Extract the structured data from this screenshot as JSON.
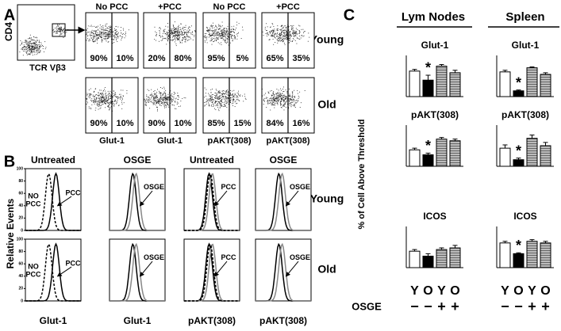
{
  "panel_a": {
    "label": "A",
    "gate_plot": {
      "y_label": "CD4",
      "x_label": "TCR Vβ3"
    },
    "columns": [
      "No PCC",
      "+PCC",
      "No PCC",
      "+PCC"
    ],
    "rows": [
      {
        "name": "Young",
        "quadrants": [
          [
            "90%",
            "10%"
          ],
          [
            "20%",
            "80%"
          ],
          [
            "95%",
            "5%"
          ],
          [
            "65%",
            "35%"
          ]
        ]
      },
      {
        "name": "Old",
        "quadrants": [
          [
            "90%",
            "10%"
          ],
          [
            "90%",
            "10%"
          ],
          [
            "85%",
            "15%"
          ],
          [
            "84%",
            "16%"
          ]
        ]
      }
    ],
    "x_labels": [
      "Glut-1",
      "Glut-1",
      "pAKT(308)",
      "pAKT(308)"
    ]
  },
  "panel_b": {
    "label": "B",
    "y_label": "Relative Events",
    "columns": [
      "Untreated",
      "OSGE",
      "Untreated",
      "OSGE"
    ],
    "rows": [
      {
        "name": "Young",
        "annotations": [
          [
            "NO",
            "PCC",
            "PCC"
          ],
          [
            "OSGE"
          ],
          [
            "PCC"
          ],
          [
            "OSGE"
          ]
        ]
      },
      {
        "name": "Old",
        "annotations": [
          [
            "NO",
            "PCC",
            "PCC"
          ],
          [
            "OSGE"
          ],
          [
            "PCC"
          ],
          [
            "OSGE"
          ]
        ]
      }
    ],
    "x_labels": [
      "Glut-1",
      "Glut-1",
      "pAKT(308)",
      "pAKT(308)"
    ],
    "yticks": [
      0,
      20,
      40,
      60,
      80,
      100
    ]
  },
  "panel_c": {
    "label": "C",
    "groups": [
      "Lym Nodes",
      "Spleen"
    ],
    "y_label": "% of Cell Above  Threshold",
    "x_categories": [
      "Y",
      "O",
      "Y",
      "O"
    ],
    "treatment_label": "OSGE",
    "treatment_signs": [
      "−",
      "−",
      "+",
      "+"
    ]
  },
  "chart_data": [
    {
      "type": "bar",
      "group": "Lym Nodes",
      "title": "Glut-1",
      "values": [
        31,
        20,
        37,
        29
      ],
      "errors": [
        2,
        6,
        2,
        3
      ],
      "colors": [
        "#ffffff",
        "#000000",
        "#a8a8a8",
        "#a8a8a8"
      ],
      "annotation": "*",
      "ylim": [
        0,
        50
      ]
    },
    {
      "type": "bar",
      "group": "Spleen",
      "title": "Glut-1",
      "values": [
        30,
        7,
        35,
        27
      ],
      "errors": [
        2,
        1,
        1,
        2
      ],
      "colors": [
        "#ffffff",
        "#000000",
        "#a8a8a8",
        "#a8a8a8"
      ],
      "annotation": "*",
      "ylim": [
        0,
        50
      ]
    },
    {
      "type": "bar",
      "group": "Lym Nodes",
      "title": "pAKT(308)",
      "values": [
        20,
        14,
        33,
        31
      ],
      "errors": [
        2,
        2,
        2,
        2
      ],
      "colors": [
        "#ffffff",
        "#000000",
        "#a8a8a8",
        "#a8a8a8"
      ],
      "annotation": "*",
      "ylim": [
        0,
        50
      ]
    },
    {
      "type": "bar",
      "group": "Spleen",
      "title": "pAKT(308)",
      "values": [
        22,
        8,
        34,
        25
      ],
      "errors": [
        4,
        2,
        4,
        4
      ],
      "colors": [
        "#ffffff",
        "#000000",
        "#a8a8a8",
        "#a8a8a8"
      ],
      "annotation": "*",
      "ylim": [
        0,
        50
      ]
    },
    {
      "type": "bar",
      "group": "Lym Nodes",
      "title": "ICOS",
      "values": [
        20,
        14,
        22,
        24
      ],
      "errors": [
        2,
        3,
        2,
        3
      ],
      "colors": [
        "#ffffff",
        "#000000",
        "#a8a8a8",
        "#a8a8a8"
      ],
      "ylim": [
        0,
        50
      ]
    },
    {
      "type": "bar",
      "group": "Spleen",
      "title": "ICOS",
      "values": [
        30,
        17,
        32,
        30
      ],
      "errors": [
        2,
        1,
        2,
        2
      ],
      "colors": [
        "#ffffff",
        "#000000",
        "#a8a8a8",
        "#a8a8a8"
      ],
      "annotation": "*",
      "ylim": [
        0,
        50
      ]
    }
  ]
}
